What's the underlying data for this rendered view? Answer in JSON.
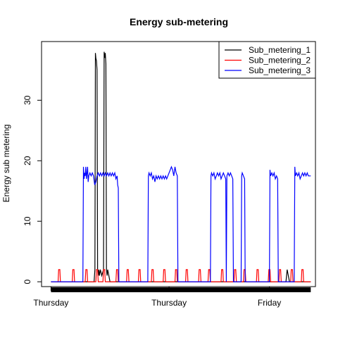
{
  "chart_data": {
    "type": "line",
    "title": "Energy sub-metering",
    "xlabel": "",
    "ylabel": "Energy sub metering",
    "x_tick_labels": [
      "Thursday",
      "Thursday",
      "Friday"
    ],
    "x_tick_positions": [
      0,
      1,
      1.85
    ],
    "xlim": [
      -0.08,
      2.24
    ],
    "yticks": [
      0,
      10,
      20,
      30
    ],
    "ylim": [
      -0.8,
      39.7
    ],
    "grid": false,
    "legend": {
      "position": "top-right",
      "entries": [
        "Sub_metering_1",
        "Sub_metering_2",
        "Sub_metering_3"
      ]
    },
    "series": [
      {
        "name": "Sub_metering_1",
        "color": "#000000",
        "x": [
          0,
          0.365,
          0.372,
          0.376,
          0.38,
          0.385,
          0.39,
          0.395,
          0.4,
          0.405,
          0.41,
          0.418,
          0.43,
          0.445,
          0.45,
          0.455,
          0.46,
          0.465,
          0.47,
          0.475,
          0.48,
          0.49,
          0.5,
          1.99,
          2.0,
          2.02,
          2.2
        ],
        "y": [
          0,
          0,
          2,
          37.8,
          37,
          36.5,
          35,
          2,
          1,
          2,
          1,
          2,
          1,
          2,
          38,
          37,
          37.8,
          36,
          2,
          1,
          2,
          1,
          0,
          0,
          2,
          0,
          0
        ]
      },
      {
        "name": "Sub_metering_2",
        "color": "#ff0000",
        "x": [
          0,
          0.06,
          0.065,
          0.075,
          0.08,
          0.18,
          0.185,
          0.195,
          0.2,
          0.29,
          0.295,
          0.305,
          0.31,
          0.38,
          0.385,
          0.395,
          0.4,
          0.44,
          0.445,
          0.455,
          0.46,
          0.55,
          0.555,
          0.565,
          0.57,
          0.64,
          0.645,
          0.655,
          0.66,
          0.74,
          0.745,
          0.755,
          0.76,
          0.85,
          0.855,
          0.865,
          0.87,
          0.95,
          0.955,
          0.965,
          0.97,
          1.05,
          1.055,
          1.065,
          1.07,
          1.14,
          1.145,
          1.155,
          1.16,
          1.25,
          1.255,
          1.265,
          1.27,
          1.33,
          1.335,
          1.345,
          1.35,
          1.44,
          1.445,
          1.455,
          1.46,
          1.55,
          1.555,
          1.565,
          1.57,
          1.63,
          1.635,
          1.645,
          1.65,
          1.74,
          1.745,
          1.755,
          1.76,
          1.84,
          1.845,
          1.855,
          1.86,
          1.93,
          1.935,
          1.945,
          1.95,
          2.03,
          2.035,
          2.045,
          2.05,
          2.12,
          2.125,
          2.135,
          2.14,
          2.2
        ],
        "y": [
          0,
          0,
          2,
          2,
          0,
          0,
          2,
          2,
          0,
          0,
          2,
          2,
          0,
          0,
          2,
          2,
          0,
          0,
          2,
          2,
          0,
          0,
          2,
          2,
          0,
          0,
          2,
          2,
          0,
          0,
          2,
          2,
          0,
          0,
          2,
          2,
          0,
          0,
          2,
          2,
          0,
          0,
          2,
          2,
          0,
          0,
          2,
          2,
          0,
          0,
          2,
          2,
          0,
          0,
          2,
          2,
          0,
          0,
          2,
          2,
          0,
          0,
          2,
          2,
          0,
          0,
          2,
          2,
          0,
          0,
          2,
          2,
          0,
          0,
          2,
          2,
          0,
          0,
          2,
          2,
          0,
          0,
          2,
          2,
          0,
          0,
          2,
          2,
          0,
          0
        ]
      },
      {
        "name": "Sub_metering_3",
        "color": "#0000ff",
        "x": [
          0,
          0.27,
          0.275,
          0.28,
          0.285,
          0.29,
          0.295,
          0.3,
          0.305,
          0.31,
          0.315,
          0.32,
          0.33,
          0.34,
          0.35,
          0.36,
          0.37,
          0.38,
          0.39,
          0.4,
          0.41,
          0.42,
          0.43,
          0.44,
          0.45,
          0.46,
          0.47,
          0.48,
          0.49,
          0.5,
          0.51,
          0.52,
          0.53,
          0.54,
          0.55,
          0.56,
          0.565,
          0.57,
          0.575,
          0.58,
          0.82,
          0.825,
          0.83,
          0.84,
          0.85,
          0.86,
          0.87,
          0.88,
          0.89,
          0.9,
          0.91,
          0.92,
          0.93,
          0.94,
          0.95,
          0.96,
          0.97,
          0.98,
          0.99,
          1.0,
          1.01,
          1.02,
          1.03,
          1.04,
          1.05,
          1.06,
          1.07,
          1.075,
          1.08,
          1.35,
          1.355,
          1.36,
          1.37,
          1.38,
          1.39,
          1.4,
          1.41,
          1.42,
          1.43,
          1.44,
          1.45,
          1.46,
          1.47,
          1.48,
          1.485,
          1.49,
          1.5,
          1.51,
          1.52,
          1.53,
          1.54,
          1.545,
          1.55,
          1.61,
          1.615,
          1.62,
          1.63,
          1.64,
          1.645,
          1.65,
          1.85,
          1.855,
          1.86,
          1.87,
          1.88,
          1.89,
          1.9,
          1.91,
          1.92,
          1.925,
          1.93,
          2.06,
          2.065,
          2.07,
          2.08,
          2.09,
          2.1,
          2.11,
          2.12,
          2.13,
          2.14,
          2.15,
          2.16,
          2.17,
          2.18,
          2.2
        ],
        "y": [
          0,
          0,
          19,
          17,
          18,
          17.5,
          19,
          17,
          18,
          19,
          16.5,
          17.5,
          18,
          17.5,
          18,
          17.5,
          16,
          16.5,
          17.5,
          18,
          17.5,
          18,
          17.5,
          18,
          17.5,
          18,
          17.5,
          18,
          17.5,
          18,
          17.5,
          18,
          17.5,
          18,
          17,
          17.5,
          16,
          15.5,
          0,
          0,
          0,
          17.5,
          18,
          17.5,
          18,
          17,
          17.5,
          16.5,
          17.5,
          17,
          17.5,
          17,
          17.5,
          17,
          17.5,
          17,
          17.5,
          17,
          17.5,
          18,
          18.5,
          19,
          18.5,
          17.5,
          19,
          18,
          17.5,
          0,
          0,
          0,
          17.5,
          18,
          17.5,
          18,
          17,
          17.5,
          18,
          17.5,
          18,
          17,
          17.5,
          18,
          17.5,
          17,
          0,
          17.5,
          18,
          17.5,
          18,
          17.5,
          17,
          0,
          0,
          0,
          17.5,
          18,
          17.5,
          17,
          0,
          0,
          0,
          18.5,
          17.5,
          18,
          17.5,
          18,
          17,
          17.5,
          17,
          0,
          0,
          0,
          19,
          17.5,
          18,
          17.5,
          18,
          17,
          17.5,
          18,
          17.5,
          18,
          17.5,
          18,
          17.5,
          17.5
        ]
      }
    ]
  }
}
